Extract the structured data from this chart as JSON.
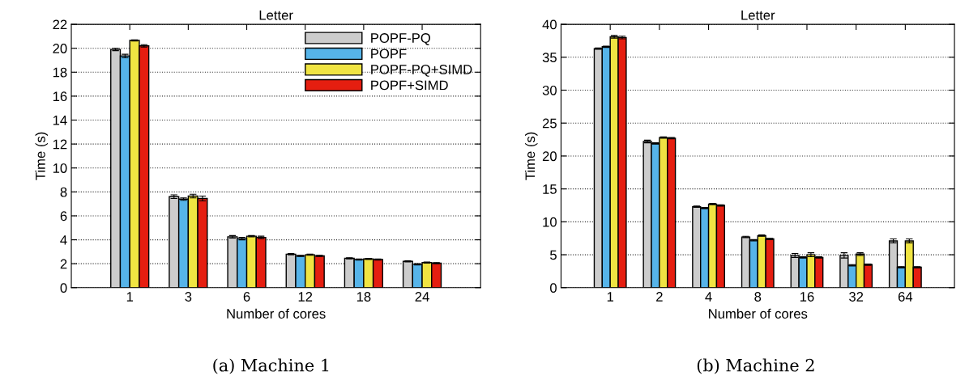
{
  "chart_data": [
    {
      "type": "bar",
      "title": "Letter",
      "xlabel": "Number of cores",
      "ylabel": "Time (s)",
      "categories": [
        "1",
        "3",
        "6",
        "12",
        "18",
        "24"
      ],
      "series": [
        {
          "name": "POPF-PQ",
          "color": "#cccccc",
          "values": [
            19.9,
            7.6,
            4.25,
            2.8,
            2.45,
            2.2
          ],
          "errors": [
            0.1,
            0.15,
            0.1,
            0.05,
            0.05,
            0.05
          ]
        },
        {
          "name": "POPF",
          "color": "#56b4e9",
          "values": [
            19.35,
            7.4,
            4.1,
            2.65,
            2.35,
            1.95
          ],
          "errors": [
            0.15,
            0.1,
            0.1,
            0.05,
            0.05,
            0.05
          ]
        },
        {
          "name": "POPF-PQ+SIMD",
          "color": "#f0e442",
          "values": [
            20.65,
            7.65,
            4.3,
            2.75,
            2.4,
            2.1
          ],
          "errors": [
            0.05,
            0.15,
            0.05,
            0.05,
            0.05,
            0.05
          ]
        },
        {
          "name": "POPF+SIMD",
          "color": "#e51e10",
          "values": [
            20.2,
            7.45,
            4.2,
            2.65,
            2.35,
            2.05
          ],
          "errors": [
            0.1,
            0.2,
            0.1,
            0.05,
            0.05,
            0.05
          ]
        }
      ],
      "ylim": [
        0,
        22
      ],
      "yticks": [
        0,
        2,
        4,
        6,
        8,
        10,
        12,
        14,
        16,
        18,
        20,
        22
      ],
      "grid": "y",
      "legend": "top right",
      "annotations": [
        "(a) Machine 1"
      ]
    },
    {
      "type": "bar",
      "title": "Letter",
      "xlabel": "Number of cores",
      "ylabel": "Time (s)",
      "categories": [
        "1",
        "2",
        "4",
        "8",
        "16",
        "32",
        "64"
      ],
      "series": [
        {
          "color": "#cccccc",
          "values": [
            36.3,
            22.2,
            12.3,
            7.7,
            4.9,
            4.9,
            7.1
          ],
          "errors": [
            0.1,
            0.2,
            0.1,
            0.1,
            0.3,
            0.4,
            0.3
          ]
        },
        {
          "color": "#56b4e9",
          "values": [
            36.6,
            21.9,
            12.1,
            7.2,
            4.6,
            3.4,
            3.1
          ],
          "errors": [
            0.1,
            0.1,
            0.1,
            0.1,
            0.1,
            0.1,
            0.1
          ]
        },
        {
          "color": "#f0e442",
          "values": [
            38.1,
            22.8,
            12.7,
            7.9,
            5.0,
            5.1,
            7.1
          ],
          "errors": [
            0.2,
            0.1,
            0.1,
            0.1,
            0.3,
            0.2,
            0.3
          ]
        },
        {
          "color": "#e51e10",
          "values": [
            38.0,
            22.7,
            12.5,
            7.4,
            4.6,
            3.5,
            3.1
          ],
          "errors": [
            0.2,
            0.1,
            0.1,
            0.1,
            0.1,
            0.1,
            0.1
          ]
        }
      ],
      "ylim": [
        0,
        40
      ],
      "yticks": [
        0,
        5,
        10,
        15,
        20,
        25,
        30,
        35,
        40
      ],
      "grid": "y",
      "annotations": [
        "(b) Machine 2"
      ]
    }
  ]
}
